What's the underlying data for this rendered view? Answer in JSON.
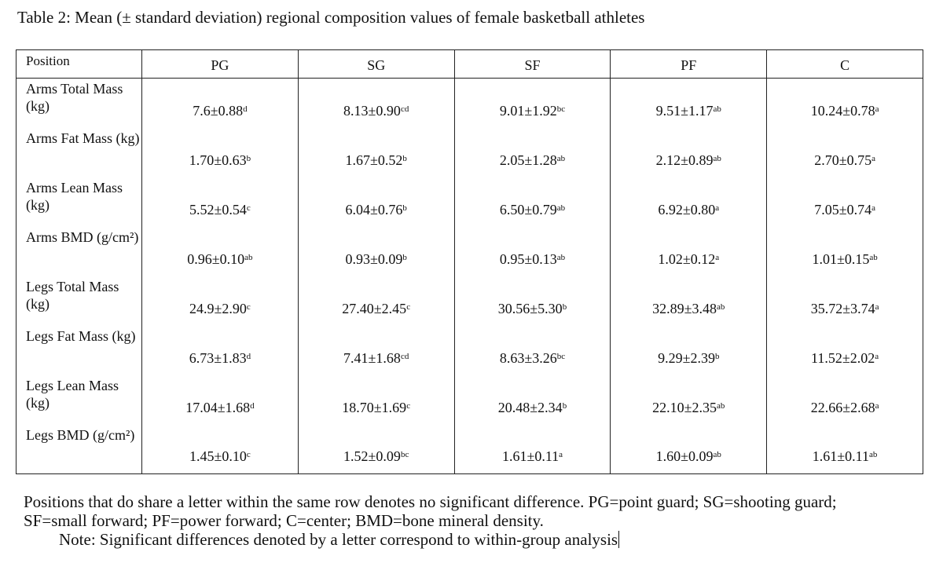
{
  "title": "Table 2: Mean (± standard deviation) regional composition values of female basketball athletes",
  "table": {
    "corner_label": "Position",
    "columns": [
      "PG",
      "SG",
      "SF",
      "PF",
      "C"
    ],
    "rows": [
      {
        "label": "Arms Total Mass (kg)",
        "cells": [
          {
            "value": "7.6±0.88",
            "sup": "d"
          },
          {
            "value": "8.13±0.90",
            "sup": "cd"
          },
          {
            "value": "9.01±1.92",
            "sup": "bc"
          },
          {
            "value": "9.51±1.17",
            "sup": "ab"
          },
          {
            "value": "10.24±0.78",
            "sup": "a"
          }
        ]
      },
      {
        "label": "Arms Fat Mass (kg)",
        "cells": [
          {
            "value": "1.70±0.63",
            "sup": "b"
          },
          {
            "value": "1.67±0.52",
            "sup": "b"
          },
          {
            "value": "2.05±1.28",
            "sup": "ab"
          },
          {
            "value": "2.12±0.89",
            "sup": "ab"
          },
          {
            "value": "2.70±0.75",
            "sup": "a"
          }
        ]
      },
      {
        "label": "Arms Lean Mass (kg)",
        "cells": [
          {
            "value": "5.52±0.54",
            "sup": "c"
          },
          {
            "value": "6.04±0.76",
            "sup": "b"
          },
          {
            "value": "6.50±0.79",
            "sup": "ab"
          },
          {
            "value": "6.92±0.80",
            "sup": "a"
          },
          {
            "value": "7.05±0.74",
            "sup": "a"
          }
        ]
      },
      {
        "label": "Arms BMD (g/cm²)",
        "cells": [
          {
            "value": "0.96±0.10",
            "sup": "ab"
          },
          {
            "value": "0.93±0.09",
            "sup": "b"
          },
          {
            "value": "0.95±0.13",
            "sup": "ab"
          },
          {
            "value": "1.02±0.12",
            "sup": "a"
          },
          {
            "value": "1.01±0.15",
            "sup": "ab"
          }
        ]
      },
      {
        "label": "Legs Total Mass (kg)",
        "cells": [
          {
            "value": "24.9±2.90",
            "sup": "c"
          },
          {
            "value": "27.40±2.45",
            "sup": "c"
          },
          {
            "value": "30.56±5.30",
            "sup": "b"
          },
          {
            "value": "32.89±3.48",
            "sup": "ab"
          },
          {
            "value": "35.72±3.74",
            "sup": "a"
          }
        ]
      },
      {
        "label": "Legs Fat Mass (kg)",
        "cells": [
          {
            "value": "6.73±1.83",
            "sup": "d"
          },
          {
            "value": "7.41±1.68",
            "sup": "cd"
          },
          {
            "value": "8.63±3.26",
            "sup": "bc"
          },
          {
            "value": "9.29±2.39",
            "sup": "b"
          },
          {
            "value": "11.52±2.02",
            "sup": "a"
          }
        ]
      },
      {
        "label": "Legs Lean Mass (kg)",
        "cells": [
          {
            "value": "17.04±1.68",
            "sup": "d"
          },
          {
            "value": "18.70±1.69",
            "sup": "c"
          },
          {
            "value": "20.48±2.34",
            "sup": "b"
          },
          {
            "value": "22.10±2.35",
            "sup": "ab"
          },
          {
            "value": "22.66±2.68",
            "sup": "a"
          }
        ]
      },
      {
        "label": "Legs BMD (g/cm²)",
        "cells": [
          {
            "value": "1.45±0.10",
            "sup": "c"
          },
          {
            "value": "1.52±0.09",
            "sup": "bc"
          },
          {
            "value": "1.61±0.11",
            "sup": "a"
          },
          {
            "value": "1.60±0.09",
            "sup": "ab"
          },
          {
            "value": "1.61±0.11",
            "sup": "ab"
          }
        ]
      }
    ]
  },
  "footnote": {
    "line1": "Positions that do share a letter within the same row denotes no significant difference. PG=point guard; SG=shooting guard;",
    "line2": "SF=small forward; PF=power forward; C=center; BMD=bone mineral density.",
    "line3": "Note: Significant differences denoted by a letter correspond to within-group analysis"
  }
}
